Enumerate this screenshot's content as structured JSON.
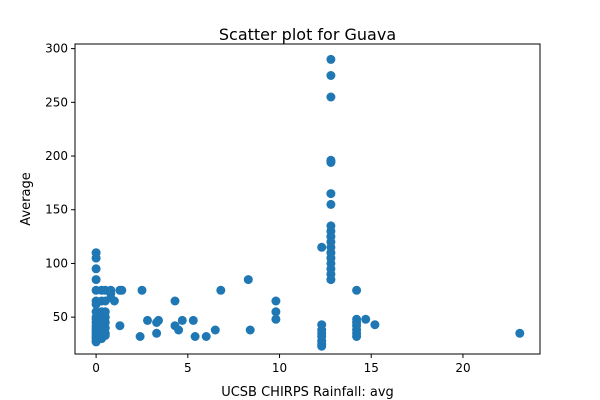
{
  "chart_data": {
    "type": "scatter",
    "title": "Scatter plot for Guava",
    "xlabel": "UCSB CHIRPS Rainfall: avg",
    "ylabel": "Average",
    "xlim": [
      -1.15,
      24.2
    ],
    "ylim": [
      15.7,
      304.3
    ],
    "xticks": [
      0,
      5,
      10,
      15,
      20
    ],
    "yticks": [
      50,
      100,
      150,
      200,
      250,
      300
    ],
    "marker_color": "#1f77b4",
    "grid": false,
    "points": [
      [
        0,
        110
      ],
      [
        0,
        105
      ],
      [
        0,
        95
      ],
      [
        0,
        85
      ],
      [
        0,
        75
      ],
      [
        0,
        65
      ],
      [
        0,
        62
      ],
      [
        0,
        55
      ],
      [
        0,
        50
      ],
      [
        0,
        48
      ],
      [
        0,
        45
      ],
      [
        0,
        42
      ],
      [
        0,
        40
      ],
      [
        0,
        38
      ],
      [
        0,
        36
      ],
      [
        0,
        34
      ],
      [
        0,
        32
      ],
      [
        0,
        30
      ],
      [
        0,
        28
      ],
      [
        0,
        27
      ],
      [
        0.3,
        75
      ],
      [
        0.3,
        65
      ],
      [
        0.3,
        55
      ],
      [
        0.3,
        50
      ],
      [
        0.3,
        45
      ],
      [
        0.3,
        40
      ],
      [
        0.3,
        35
      ],
      [
        0.3,
        30
      ],
      [
        0.5,
        75
      ],
      [
        0.5,
        65
      ],
      [
        0.5,
        55
      ],
      [
        0.5,
        50
      ],
      [
        0.5,
        45
      ],
      [
        0.5,
        40
      ],
      [
        0.5,
        35
      ],
      [
        0.5,
        33
      ],
      [
        0.8,
        75
      ],
      [
        0.8,
        72
      ],
      [
        0.8,
        68
      ],
      [
        1.0,
        65
      ],
      [
        1.3,
        75
      ],
      [
        1.4,
        75
      ],
      [
        1.3,
        42
      ],
      [
        2.4,
        32
      ],
      [
        2.5,
        75
      ],
      [
        2.8,
        47
      ],
      [
        3.3,
        45
      ],
      [
        3.4,
        47
      ],
      [
        3.3,
        35
      ],
      [
        4.3,
        65
      ],
      [
        4.3,
        42
      ],
      [
        4.5,
        38
      ],
      [
        4.7,
        47
      ],
      [
        5.3,
        47
      ],
      [
        5.4,
        32
      ],
      [
        6.0,
        32
      ],
      [
        6.5,
        38
      ],
      [
        6.8,
        75
      ],
      [
        8.3,
        85
      ],
      [
        8.4,
        38
      ],
      [
        9.8,
        65
      ],
      [
        9.8,
        55
      ],
      [
        9.8,
        48
      ],
      [
        12.3,
        115
      ],
      [
        12.3,
        43
      ],
      [
        12.3,
        38
      ],
      [
        12.3,
        35
      ],
      [
        12.3,
        32
      ],
      [
        12.3,
        28
      ],
      [
        12.3,
        25
      ],
      [
        12.3,
        23
      ],
      [
        12.8,
        290
      ],
      [
        12.8,
        275
      ],
      [
        12.8,
        255
      ],
      [
        12.8,
        196
      ],
      [
        12.8,
        195
      ],
      [
        12.8,
        194
      ],
      [
        12.8,
        165
      ],
      [
        12.8,
        155
      ],
      [
        12.8,
        135
      ],
      [
        12.8,
        130
      ],
      [
        12.8,
        125
      ],
      [
        12.8,
        120
      ],
      [
        12.8,
        115
      ],
      [
        12.8,
        110
      ],
      [
        12.8,
        105
      ],
      [
        12.8,
        100
      ],
      [
        12.8,
        95
      ],
      [
        12.8,
        90
      ],
      [
        12.8,
        85
      ],
      [
        14.2,
        75
      ],
      [
        14.2,
        48
      ],
      [
        14.2,
        45
      ],
      [
        14.2,
        42
      ],
      [
        14.2,
        38
      ],
      [
        14.2,
        35
      ],
      [
        14.2,
        32
      ],
      [
        14.7,
        48
      ],
      [
        15.2,
        43
      ],
      [
        23.1,
        35
      ]
    ]
  }
}
